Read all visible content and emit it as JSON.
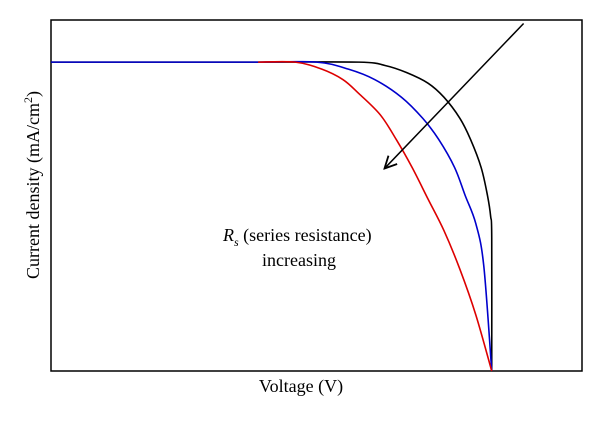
{
  "chart_data": {
    "type": "line",
    "title": "",
    "xlabel": "Voltage (V)",
    "ylabel": {
      "prefix": "Current density (mA/cm",
      "superscript": "2",
      "suffix": ")"
    },
    "grid": false,
    "legend": "none",
    "xlim": [
      0,
      1
    ],
    "ylim": [
      0,
      1
    ],
    "x_ticks": [],
    "y_ticks": [],
    "series": [
      {
        "color": "#000000",
        "points": [
          [
            0.0,
            0.88
          ],
          [
            0.39,
            0.88
          ],
          [
            0.58,
            0.88
          ],
          [
            0.63,
            0.87
          ],
          [
            0.67,
            0.85
          ],
          [
            0.71,
            0.82
          ],
          [
            0.74,
            0.78
          ],
          [
            0.77,
            0.72
          ],
          [
            0.79,
            0.66
          ],
          [
            0.81,
            0.58
          ],
          [
            0.822,
            0.5
          ],
          [
            0.828,
            0.44
          ],
          [
            0.83,
            0.38
          ],
          [
            0.83,
            0.0
          ]
        ]
      },
      {
        "color": "#0000cc",
        "points": [
          [
            0.0,
            0.88
          ],
          [
            0.39,
            0.88
          ],
          [
            0.5,
            0.88
          ],
          [
            0.56,
            0.86
          ],
          [
            0.61,
            0.83
          ],
          [
            0.66,
            0.78
          ],
          [
            0.7,
            0.72
          ],
          [
            0.73,
            0.66
          ],
          [
            0.76,
            0.58
          ],
          [
            0.78,
            0.5
          ],
          [
            0.8,
            0.42
          ],
          [
            0.815,
            0.3
          ],
          [
            0.83,
            0.0
          ]
        ]
      },
      {
        "color": "#dd0000",
        "points": [
          [
            0.39,
            0.88
          ],
          [
            0.46,
            0.88
          ],
          [
            0.51,
            0.86
          ],
          [
            0.55,
            0.83
          ],
          [
            0.58,
            0.79
          ],
          [
            0.62,
            0.73
          ],
          [
            0.65,
            0.66
          ],
          [
            0.68,
            0.58
          ],
          [
            0.71,
            0.49
          ],
          [
            0.74,
            0.4
          ],
          [
            0.77,
            0.29
          ],
          [
            0.8,
            0.16
          ],
          [
            0.83,
            0.0
          ]
        ]
      }
    ],
    "annotation": {
      "symbol": "R",
      "subscript": "s",
      "line1_rest": " (series resistance)",
      "line2": "increasing",
      "arrow_from": [
        0.89,
        0.99
      ],
      "arrow_to": [
        0.63,
        0.58
      ],
      "arrow_color": "#000000"
    }
  }
}
